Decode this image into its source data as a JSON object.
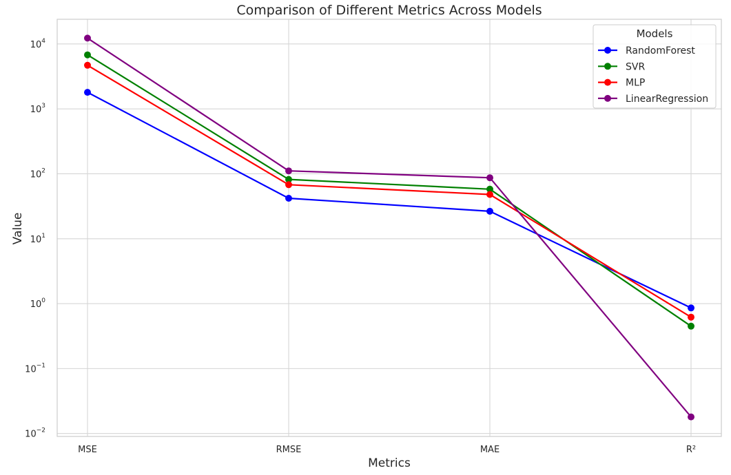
{
  "chart_data": {
    "type": "line",
    "title": "Comparison of Different Metrics Across Models",
    "xlabel": "Metrics",
    "ylabel": "Value",
    "yscale": "log",
    "ylim": [
      0.009,
      24000
    ],
    "categories": [
      "MSE",
      "RMSE",
      "MAE",
      "R²"
    ],
    "yticks": [
      {
        "base": "10",
        "exp": "−2",
        "value": 0.01
      },
      {
        "base": "10",
        "exp": "−1",
        "value": 0.1
      },
      {
        "base": "10",
        "exp": "0",
        "value": 1
      },
      {
        "base": "10",
        "exp": "1",
        "value": 10
      },
      {
        "base": "10",
        "exp": "2",
        "value": 100
      },
      {
        "base": "10",
        "exp": "3",
        "value": 1000
      },
      {
        "base": "10",
        "exp": "4",
        "value": 10000
      }
    ],
    "grid": true,
    "legend": {
      "title": "Models",
      "position": "top-right"
    },
    "series": [
      {
        "name": "RandomForest",
        "color": "#0000ff",
        "values": [
          1800,
          42,
          26.5,
          0.86
        ]
      },
      {
        "name": "SVR",
        "color": "#008000",
        "values": [
          6800,
          82,
          58,
          0.45
        ]
      },
      {
        "name": "MLP",
        "color": "#ff0000",
        "values": [
          4700,
          68,
          48,
          0.62
        ]
      },
      {
        "name": "LinearRegression",
        "color": "#800080",
        "values": [
          12300,
          111,
          87,
          0.018
        ]
      }
    ]
  }
}
